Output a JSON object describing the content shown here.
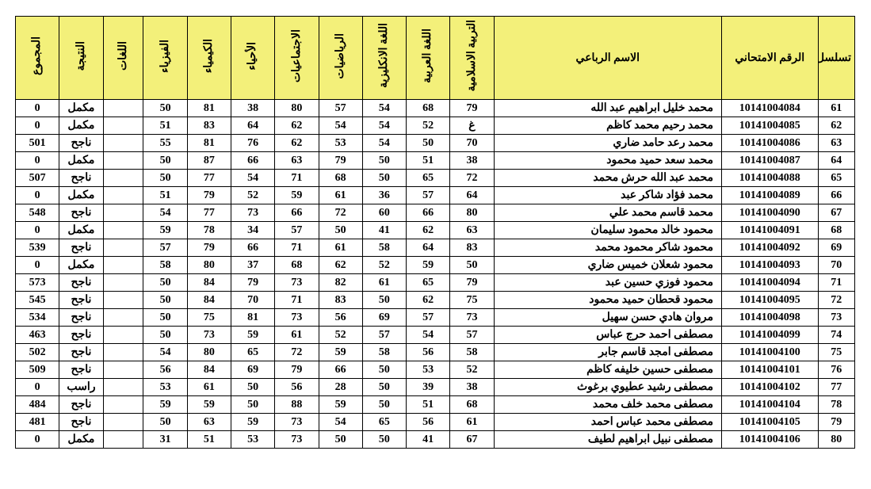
{
  "table": {
    "header_bg": "#f3f07a",
    "border_color": "#000000",
    "columns": [
      {
        "key": "seq",
        "label": "تسلسل",
        "vertical": false
      },
      {
        "key": "exam_no",
        "label": "الرقم الامتحاني",
        "vertical": false
      },
      {
        "key": "name",
        "label": "الاسم الرباعي",
        "vertical": false
      },
      {
        "key": "islamic",
        "label": "التربية الاسلامية",
        "vertical": true
      },
      {
        "key": "arabic",
        "label": "اللغة العربية",
        "vertical": true
      },
      {
        "key": "english",
        "label": "اللغة الانكليزية",
        "vertical": true
      },
      {
        "key": "math",
        "label": "الرياضيات",
        "vertical": true
      },
      {
        "key": "social",
        "label": "الاجتماعيات",
        "vertical": true
      },
      {
        "key": "biology",
        "label": "الأحياء",
        "vertical": true
      },
      {
        "key": "chemistry",
        "label": "الكيمياء",
        "vertical": true
      },
      {
        "key": "physics",
        "label": "الفيزياء",
        "vertical": true
      },
      {
        "key": "languages",
        "label": "اللغات",
        "vertical": true
      },
      {
        "key": "result",
        "label": "النتيجة",
        "vertical": true
      },
      {
        "key": "total",
        "label": "المجموع",
        "vertical": true
      }
    ],
    "rows": [
      {
        "seq": "61",
        "exam_no": "10141004084",
        "name": "محمد خليل ابراهيم عبد الله",
        "islamic": "79",
        "arabic": "68",
        "english": "54",
        "math": "57",
        "social": "80",
        "biology": "38",
        "chemistry": "81",
        "physics": "50",
        "languages": "",
        "result": "مكمل",
        "total": "0"
      },
      {
        "seq": "62",
        "exam_no": "10141004085",
        "name": "محمد رحيم محمد كاظم",
        "islamic": "غ",
        "arabic": "52",
        "english": "54",
        "math": "54",
        "social": "62",
        "biology": "64",
        "chemistry": "83",
        "physics": "51",
        "languages": "",
        "result": "مكمل",
        "total": "0"
      },
      {
        "seq": "63",
        "exam_no": "10141004086",
        "name": "محمد رعد حامد ضاري",
        "islamic": "70",
        "arabic": "50",
        "english": "54",
        "math": "53",
        "social": "62",
        "biology": "76",
        "chemistry": "81",
        "physics": "55",
        "languages": "",
        "result": "ناجح",
        "total": "501"
      },
      {
        "seq": "64",
        "exam_no": "10141004087",
        "name": "محمد سعد حميد محمود",
        "islamic": "38",
        "arabic": "51",
        "english": "50",
        "math": "79",
        "social": "63",
        "biology": "66",
        "chemistry": "87",
        "physics": "50",
        "languages": "",
        "result": "مكمل",
        "total": "0"
      },
      {
        "seq": "65",
        "exam_no": "10141004088",
        "name": "محمد عبد الله حرش محمد",
        "islamic": "72",
        "arabic": "65",
        "english": "50",
        "math": "68",
        "social": "71",
        "biology": "54",
        "chemistry": "77",
        "physics": "50",
        "languages": "",
        "result": "ناجح",
        "total": "507"
      },
      {
        "seq": "66",
        "exam_no": "10141004089",
        "name": "محمد فؤاد شاكر عبد",
        "islamic": "64",
        "arabic": "57",
        "english": "36",
        "math": "61",
        "social": "59",
        "biology": "52",
        "chemistry": "79",
        "physics": "51",
        "languages": "",
        "result": "مكمل",
        "total": "0"
      },
      {
        "seq": "67",
        "exam_no": "10141004090",
        "name": "محمد قاسم محمد علي",
        "islamic": "80",
        "arabic": "66",
        "english": "60",
        "math": "72",
        "social": "66",
        "biology": "73",
        "chemistry": "77",
        "physics": "54",
        "languages": "",
        "result": "ناجح",
        "total": "548"
      },
      {
        "seq": "68",
        "exam_no": "10141004091",
        "name": "محمود خالد محمود سليمان",
        "islamic": "63",
        "arabic": "62",
        "english": "41",
        "math": "50",
        "social": "57",
        "biology": "34",
        "chemistry": "78",
        "physics": "59",
        "languages": "",
        "result": "مكمل",
        "total": "0"
      },
      {
        "seq": "69",
        "exam_no": "10141004092",
        "name": "محمود شاكر محمود محمد",
        "islamic": "83",
        "arabic": "64",
        "english": "58",
        "math": "61",
        "social": "71",
        "biology": "66",
        "chemistry": "79",
        "physics": "57",
        "languages": "",
        "result": "ناجح",
        "total": "539"
      },
      {
        "seq": "70",
        "exam_no": "10141004093",
        "name": "محمود شعلان خميس ضاري",
        "islamic": "50",
        "arabic": "59",
        "english": "52",
        "math": "62",
        "social": "68",
        "biology": "37",
        "chemistry": "80",
        "physics": "58",
        "languages": "",
        "result": "مكمل",
        "total": "0"
      },
      {
        "seq": "71",
        "exam_no": "10141004094",
        "name": "محمود فوزي حسين عبد",
        "islamic": "79",
        "arabic": "65",
        "english": "61",
        "math": "82",
        "social": "73",
        "biology": "79",
        "chemistry": "84",
        "physics": "50",
        "languages": "",
        "result": "ناجح",
        "total": "573"
      },
      {
        "seq": "72",
        "exam_no": "10141004095",
        "name": "محمود قحطان حميد محمود",
        "islamic": "75",
        "arabic": "62",
        "english": "50",
        "math": "83",
        "social": "71",
        "biology": "70",
        "chemistry": "84",
        "physics": "50",
        "languages": "",
        "result": "ناجح",
        "total": "545"
      },
      {
        "seq": "73",
        "exam_no": "10141004098",
        "name": "مروان هادي حسن سهيل",
        "islamic": "73",
        "arabic": "57",
        "english": "69",
        "math": "56",
        "social": "73",
        "biology": "81",
        "chemistry": "75",
        "physics": "50",
        "languages": "",
        "result": "ناجح",
        "total": "534"
      },
      {
        "seq": "74",
        "exam_no": "10141004099",
        "name": "مصطفى احمد حرج عباس",
        "islamic": "57",
        "arabic": "54",
        "english": "57",
        "math": "52",
        "social": "61",
        "biology": "59",
        "chemistry": "73",
        "physics": "50",
        "languages": "",
        "result": "ناجح",
        "total": "463"
      },
      {
        "seq": "75",
        "exam_no": "10141004100",
        "name": "مصطفى امجد قاسم جابر",
        "islamic": "58",
        "arabic": "56",
        "english": "58",
        "math": "59",
        "social": "72",
        "biology": "65",
        "chemistry": "80",
        "physics": "54",
        "languages": "",
        "result": "ناجح",
        "total": "502"
      },
      {
        "seq": "76",
        "exam_no": "10141004101",
        "name": "مصطفى حسين خليفه كاظم",
        "islamic": "52",
        "arabic": "53",
        "english": "50",
        "math": "66",
        "social": "79",
        "biology": "69",
        "chemistry": "84",
        "physics": "56",
        "languages": "",
        "result": "ناجح",
        "total": "509"
      },
      {
        "seq": "77",
        "exam_no": "10141004102",
        "name": "مصطفى رشيد عطيوي برغوث",
        "islamic": "38",
        "arabic": "39",
        "english": "50",
        "math": "28",
        "social": "56",
        "biology": "50",
        "chemistry": "61",
        "physics": "53",
        "languages": "",
        "result": "راسب",
        "total": "0"
      },
      {
        "seq": "78",
        "exam_no": "10141004104",
        "name": "مصطفى محمد خلف محمد",
        "islamic": "68",
        "arabic": "51",
        "english": "50",
        "math": "59",
        "social": "88",
        "biology": "50",
        "chemistry": "59",
        "physics": "59",
        "languages": "",
        "result": "ناجح",
        "total": "484"
      },
      {
        "seq": "79",
        "exam_no": "10141004105",
        "name": "مصطفى محمد عباس احمد",
        "islamic": "61",
        "arabic": "56",
        "english": "65",
        "math": "54",
        "social": "73",
        "biology": "59",
        "chemistry": "63",
        "physics": "50",
        "languages": "",
        "result": "ناجح",
        "total": "481"
      },
      {
        "seq": "80",
        "exam_no": "10141004106",
        "name": "مصطفى نبيل ابراهيم لطيف",
        "islamic": "67",
        "arabic": "41",
        "english": "50",
        "math": "50",
        "social": "73",
        "biology": "53",
        "chemistry": "51",
        "physics": "31",
        "languages": "",
        "result": "مكمل",
        "total": "0"
      }
    ]
  }
}
